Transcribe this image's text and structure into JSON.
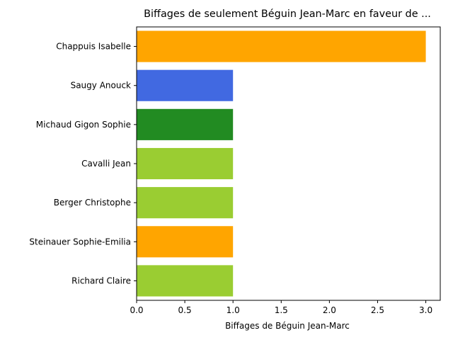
{
  "chart_data": {
    "type": "bar",
    "orientation": "horizontal",
    "title": "Biffages de seulement Béguin Jean-Marc en faveur de ...",
    "xlabel": "Biffages de Béguin Jean-Marc",
    "ylabel": "",
    "categories": [
      "Chappuis Isabelle",
      "Saugy Anouck",
      "Michaud Gigon Sophie",
      "Cavalli Jean",
      "Berger Christophe",
      "Steinauer Sophie-Emilia",
      "Richard Claire"
    ],
    "values": [
      3,
      1,
      1,
      1,
      1,
      1,
      1
    ],
    "colors": [
      "#ffa500",
      "#4169e1",
      "#228b22",
      "#9acd32",
      "#9acd32",
      "#ffa500",
      "#9acd32"
    ],
    "xlim": [
      0,
      3.15
    ],
    "xticks": [
      0.0,
      0.5,
      1.0,
      1.5,
      2.0,
      2.5,
      3.0
    ],
    "xtick_labels": [
      "0.0",
      "0.5",
      "1.0",
      "1.5",
      "2.0",
      "2.5",
      "3.0"
    ],
    "grid": false,
    "legend": "none"
  }
}
